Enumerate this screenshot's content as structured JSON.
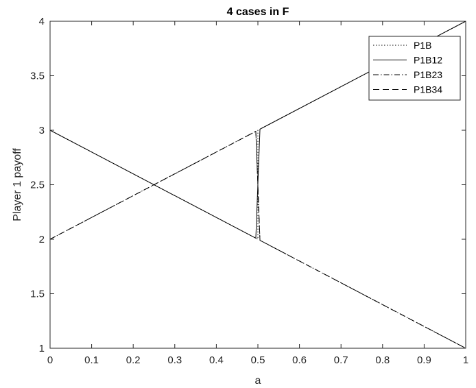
{
  "chart_data": {
    "type": "line",
    "title": "4 cases in F",
    "xlabel": "a",
    "ylabel": "Player 1 payoff",
    "xlim": [
      0,
      1
    ],
    "ylim": [
      1,
      4
    ],
    "xticks": [
      0,
      0.1,
      0.2,
      0.3,
      0.4,
      0.5,
      0.6,
      0.7,
      0.8,
      0.9,
      1
    ],
    "xtick_labels": [
      "0",
      "0.1",
      "0.2",
      "0.3",
      "0.4",
      "0.5",
      "0.6",
      "0.7",
      "0.8",
      "0.9",
      "1"
    ],
    "yticks": [
      1,
      1.5,
      2,
      2.5,
      3,
      3.5,
      4
    ],
    "ytick_labels": [
      "1",
      "1.5",
      "2",
      "2.5",
      "3",
      "3.5",
      "4"
    ],
    "grid": false,
    "legend_position": "top-right",
    "series": [
      {
        "name": "P1B",
        "style": "dotted",
        "x": [
          0,
          0.5,
          0.5,
          1
        ],
        "y": [
          3,
          2,
          3,
          4
        ]
      },
      {
        "name": "P1B12",
        "style": "solid",
        "x": [
          0,
          0.495,
          0.505,
          1
        ],
        "y": [
          3,
          2.01,
          3.01,
          4
        ]
      },
      {
        "name": "P1B23",
        "style": "dashdot",
        "x": [
          0,
          0.495,
          0.505,
          1
        ],
        "y": [
          2,
          2.99,
          1.99,
          1
        ]
      },
      {
        "name": "P1B34",
        "style": "dashed",
        "x": [
          0,
          0.495,
          0.505,
          1
        ],
        "y": [
          2,
          2.99,
          1.99,
          1
        ]
      }
    ],
    "colors": {
      "line": "#000000",
      "axis": "#262626"
    }
  }
}
